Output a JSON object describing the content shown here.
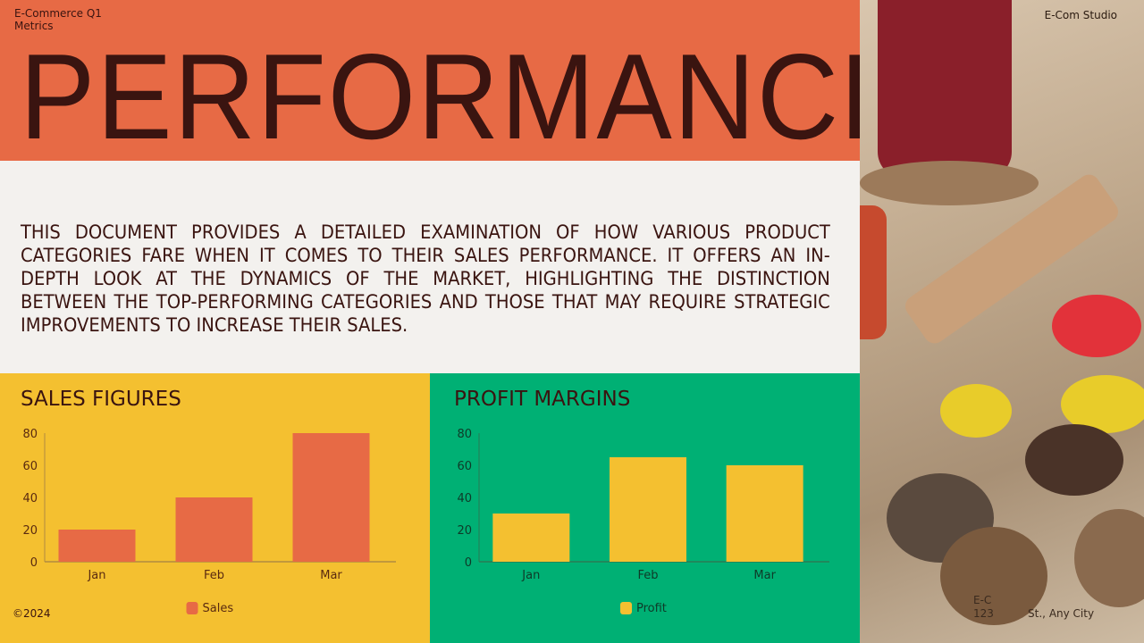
{
  "header": {
    "meta": "E-Commerce Q1 Metrics",
    "title": "PERFORMANCE",
    "studio": "E-Com Studio"
  },
  "description": "This document provides a detailed examination of how various product categories fare when it comes to their sales performance. It offers an in-depth look at the dynamics of the market, highlighting the distinction between the top-performing categories and those that may require strategic improvements to increase their sales.",
  "footer": {
    "copyright": "©2024",
    "address_line1": "E-C",
    "address_line2": "123          St., Any City"
  },
  "colors": {
    "orange": "#e76a45",
    "yellow": "#f4c030",
    "green": "#00b074",
    "dark": "#3a1410"
  },
  "chart_data": [
    {
      "type": "bar",
      "title": "SALES FIGURES",
      "categories": [
        "Jan",
        "Feb",
        "Mar"
      ],
      "series": [
        {
          "name": "Sales",
          "values": [
            20,
            40,
            80
          ],
          "color": "#e76a45"
        }
      ],
      "yticks": [
        "0",
        "20",
        "40",
        "60",
        "80"
      ],
      "ylim": [
        0,
        80
      ],
      "grid": false,
      "legend": "bottom"
    },
    {
      "type": "bar",
      "title": "PROFIT MARGINS",
      "categories": [
        "Jan",
        "Feb",
        "Mar"
      ],
      "series": [
        {
          "name": "Profit",
          "values": [
            30,
            65,
            60
          ],
          "color": "#f4c030"
        }
      ],
      "yticks": [
        "0",
        "20",
        "40",
        "60",
        "80"
      ],
      "ylim": [
        0,
        80
      ],
      "grid": false,
      "legend": "bottom"
    }
  ]
}
